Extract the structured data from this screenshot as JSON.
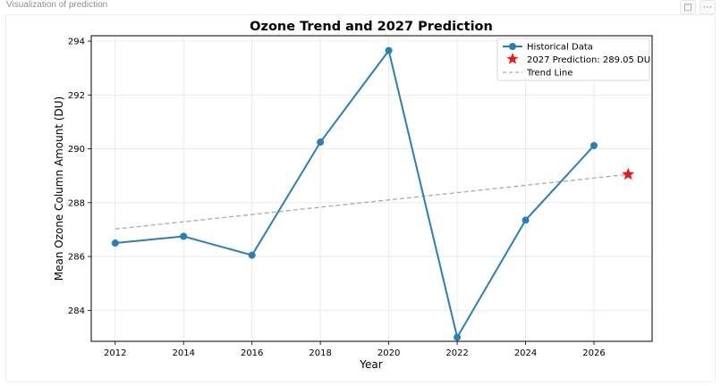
{
  "caption": "Visualization of prediction",
  "toolbar": {
    "comment_icon": "comment-icon",
    "more_icon": "more-icon"
  },
  "chart_data": {
    "type": "line",
    "title": "Ozone Trend and 2027 Prediction",
    "xlabel": "Year",
    "ylabel": "Mean Ozone Column Amount (DU)",
    "xlim": [
      2011.3,
      2027.7
    ],
    "ylim": [
      282.85,
      294.2
    ],
    "xticks": [
      2012,
      2014,
      2016,
      2018,
      2020,
      2022,
      2024,
      2026
    ],
    "yticks": [
      284,
      286,
      288,
      290,
      292,
      294
    ],
    "grid": true,
    "legend_position": "top-right",
    "colors": {
      "historical": "#2e7eb6",
      "prediction": "#e41a1c",
      "trend": "#aaaaaa"
    },
    "series": [
      {
        "name": "Historical Data",
        "style": "line-marker",
        "x": [
          2012,
          2014,
          2016,
          2018,
          2020,
          2022,
          2024,
          2026
        ],
        "y": [
          286.5,
          286.75,
          286.05,
          290.25,
          293.65,
          283.0,
          287.35,
          290.12
        ]
      },
      {
        "name": "2027 Prediction: 289.05 DU",
        "style": "star",
        "x": [
          2027
        ],
        "y": [
          289.05
        ]
      },
      {
        "name": "Trend Line",
        "style": "dashed",
        "x": [
          2012,
          2027
        ],
        "y": [
          287.02,
          289.05
        ]
      }
    ]
  }
}
